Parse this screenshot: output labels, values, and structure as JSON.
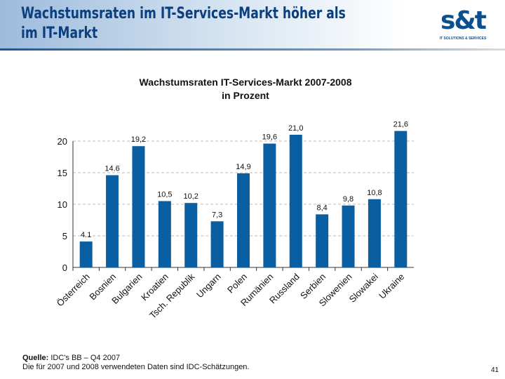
{
  "header": {
    "title_line1": "Wachstumsraten im IT-Services-Markt höher als",
    "title_line2": "im IT-Markt",
    "logo_text": "s&t",
    "logo_tagline": "IT SOLUTIONS & SERVICES"
  },
  "chart_data": {
    "type": "bar",
    "title": "Wachstumsraten IT-Services-Markt 2007-2008",
    "subtitle": "in Prozent",
    "categories": [
      "Österreich",
      "Bosnien",
      "Bulgarien",
      "Kroatien",
      "Tsch. Republik",
      "Ungarn",
      "Polen",
      "Rumänien",
      "Russland",
      "Serbien",
      "Slowenien",
      "Slowakei",
      "Ukraine"
    ],
    "values": [
      4.1,
      14.6,
      19.2,
      10.5,
      10.2,
      7.3,
      14.9,
      19.6,
      21.0,
      8.4,
      9.8,
      10.8,
      21.6
    ],
    "data_labels": [
      "4.1",
      "14.6",
      "19,2",
      "10,5",
      "10,2",
      "7,3",
      "14,9",
      "19,6",
      "21,0",
      "8,4",
      "9,8",
      "10,8",
      "21,6"
    ],
    "yticks": [
      "0",
      "5",
      "10",
      "15",
      "20"
    ],
    "ylim": [
      0,
      20
    ],
    "grid": true,
    "bar_color": "#0a5fa3"
  },
  "footer": {
    "source_label": "Quelle:",
    "source_text": " IDC's BB – Q4 2007",
    "note": "Die für 2007 und 2008 verwendeten Daten sind IDC-Schätzungen.",
    "page_number": "41"
  }
}
